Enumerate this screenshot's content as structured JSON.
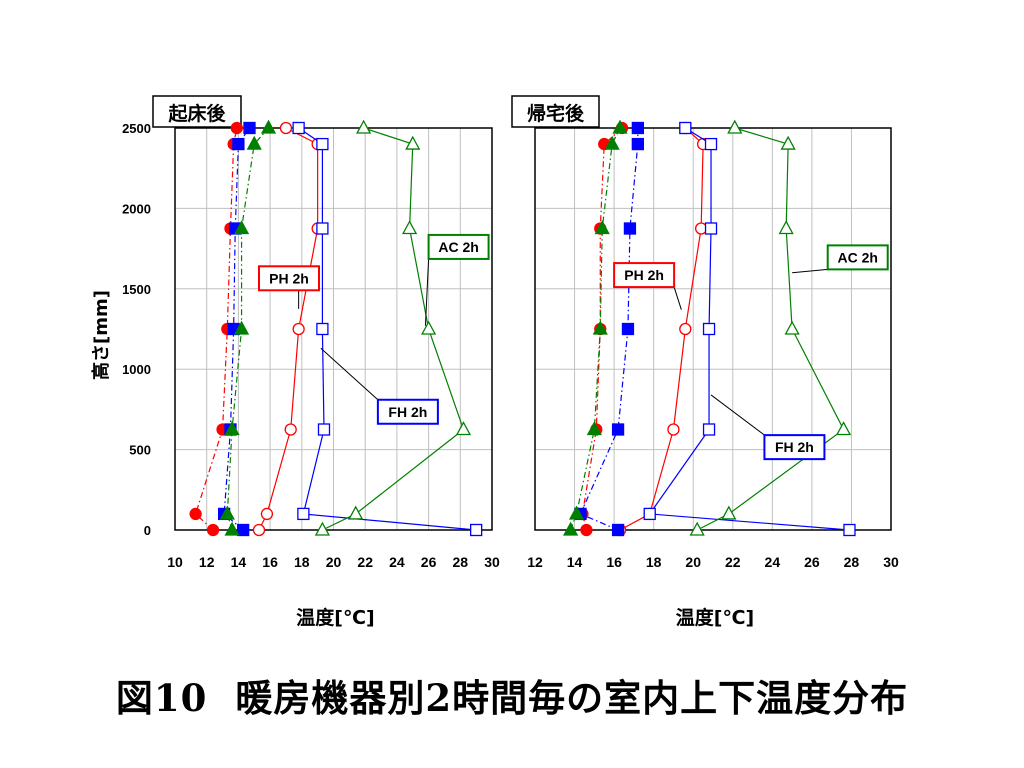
{
  "caption": {
    "figure_no": "図10",
    "text": "暖房機器別2時間毎の室内上下温度分布"
  },
  "colors": {
    "PH": "#ff0000",
    "FH": "#0000ff",
    "AC": "#008000",
    "grid": "#c0c0c0",
    "frame": "#000000"
  },
  "chart_data": [
    {
      "type": "line",
      "title": "起床後",
      "xlabel": "温度[℃]",
      "ylabel": "高さ[mm]",
      "xlim": [
        10,
        30
      ],
      "ylim": [
        0,
        2500
      ],
      "xticks": [
        "10",
        "12",
        "14",
        "16",
        "18",
        "20",
        "22",
        "24",
        "26",
        "28",
        "30"
      ],
      "yticks": [
        "0",
        "500",
        "1000",
        "1500",
        "2000",
        "2500"
      ],
      "grid": true,
      "y": [
        0,
        100,
        625,
        1250,
        1875,
        2400,
        2500
      ],
      "series": [
        {
          "name": "PH 2h",
          "color": "#ff0000",
          "marker": "circle",
          "fill": "open",
          "dash": "solid",
          "x": [
            15.3,
            15.8,
            17.3,
            17.8,
            19.0,
            19.0,
            17.0
          ]
        },
        {
          "name": "FH 2h",
          "color": "#0000ff",
          "marker": "square",
          "fill": "open",
          "dash": "solid",
          "x": [
            29.0,
            18.1,
            19.4,
            19.3,
            19.3,
            19.3,
            17.8
          ]
        },
        {
          "name": "AC 2h",
          "color": "#008000",
          "marker": "triangle",
          "fill": "open",
          "dash": "solid",
          "x": [
            19.3,
            21.4,
            28.2,
            26.0,
            24.8,
            25.0,
            21.9
          ]
        },
        {
          "color": "#ff0000",
          "marker": "circle",
          "fill": "filled",
          "dash": "dashdot",
          "x": [
            12.4,
            11.3,
            13.0,
            13.3,
            13.5,
            13.7,
            13.9
          ]
        },
        {
          "color": "#0000ff",
          "marker": "square",
          "fill": "filled",
          "dash": "dashdot",
          "x": [
            14.3,
            13.1,
            13.5,
            13.7,
            13.8,
            14.0,
            14.7
          ]
        },
        {
          "color": "#008000",
          "marker": "triangle",
          "fill": "filled",
          "dash": "dashdot",
          "x": [
            13.6,
            13.3,
            13.6,
            14.2,
            14.2,
            15.0,
            15.9
          ]
        }
      ],
      "legend_labels": [
        {
          "text": "PH 2h",
          "color": "#ff0000",
          "at": [
            15.3,
            1640
          ],
          "leader_to": [
            17.8,
            1375
          ]
        },
        {
          "text": "AC 2h",
          "color": "#008000",
          "at": [
            26.0,
            1835
          ],
          "leader_to": [
            25.8,
            1270
          ]
        },
        {
          "text": "FH 2h",
          "color": "#0000ff",
          "at": [
            22.8,
            810
          ],
          "leader_to": [
            19.2,
            1130
          ]
        }
      ]
    },
    {
      "type": "line",
      "title": "帰宅後",
      "xlabel": "温度[℃]",
      "ylabel": "",
      "xlim": [
        12,
        30
      ],
      "ylim": [
        0,
        2500
      ],
      "xticks": [
        "12",
        "14",
        "16",
        "18",
        "20",
        "22",
        "24",
        "26",
        "28",
        "30"
      ],
      "yticks": [],
      "grid": true,
      "y": [
        0,
        100,
        625,
        1250,
        1875,
        2400,
        2500
      ],
      "series": [
        {
          "name": "PH 2h",
          "color": "#ff0000",
          "marker": "circle",
          "fill": "open",
          "dash": "solid",
          "x": [
            16.3,
            17.8,
            19.0,
            19.6,
            20.4,
            20.5,
            19.6
          ]
        },
        {
          "name": "FH 2h",
          "color": "#0000ff",
          "marker": "square",
          "fill": "open",
          "dash": "solid",
          "x": [
            27.9,
            17.8,
            20.8,
            20.8,
            20.9,
            20.9,
            19.6
          ]
        },
        {
          "name": "AC 2h",
          "color": "#008000",
          "marker": "triangle",
          "fill": "open",
          "dash": "solid",
          "x": [
            20.2,
            21.8,
            27.6,
            25.0,
            24.7,
            24.8,
            22.1
          ]
        },
        {
          "color": "#ff0000",
          "marker": "circle",
          "fill": "filled",
          "dash": "dashdot",
          "x": [
            14.6,
            14.4,
            15.1,
            15.3,
            15.3,
            15.5,
            16.4
          ]
        },
        {
          "color": "#0000ff",
          "marker": "square",
          "fill": "filled",
          "dash": "dashdot",
          "x": [
            16.2,
            14.3,
            16.2,
            16.7,
            16.8,
            17.2,
            17.2
          ]
        },
        {
          "color": "#008000",
          "marker": "triangle",
          "fill": "filled",
          "dash": "dashdot",
          "x": [
            13.8,
            14.1,
            15.0,
            15.3,
            15.4,
            15.9,
            16.3
          ]
        }
      ],
      "legend_labels": [
        {
          "text": "PH 2h",
          "color": "#ff0000",
          "at": [
            16.0,
            1660
          ],
          "leader_to": [
            19.4,
            1370
          ]
        },
        {
          "text": "AC 2h",
          "color": "#008000",
          "at": [
            26.8,
            1770
          ],
          "leader_to": [
            25.0,
            1600
          ]
        },
        {
          "text": "FH 2h",
          "color": "#0000ff",
          "at": [
            23.6,
            590
          ],
          "leader_to": [
            20.9,
            840
          ]
        }
      ]
    }
  ]
}
